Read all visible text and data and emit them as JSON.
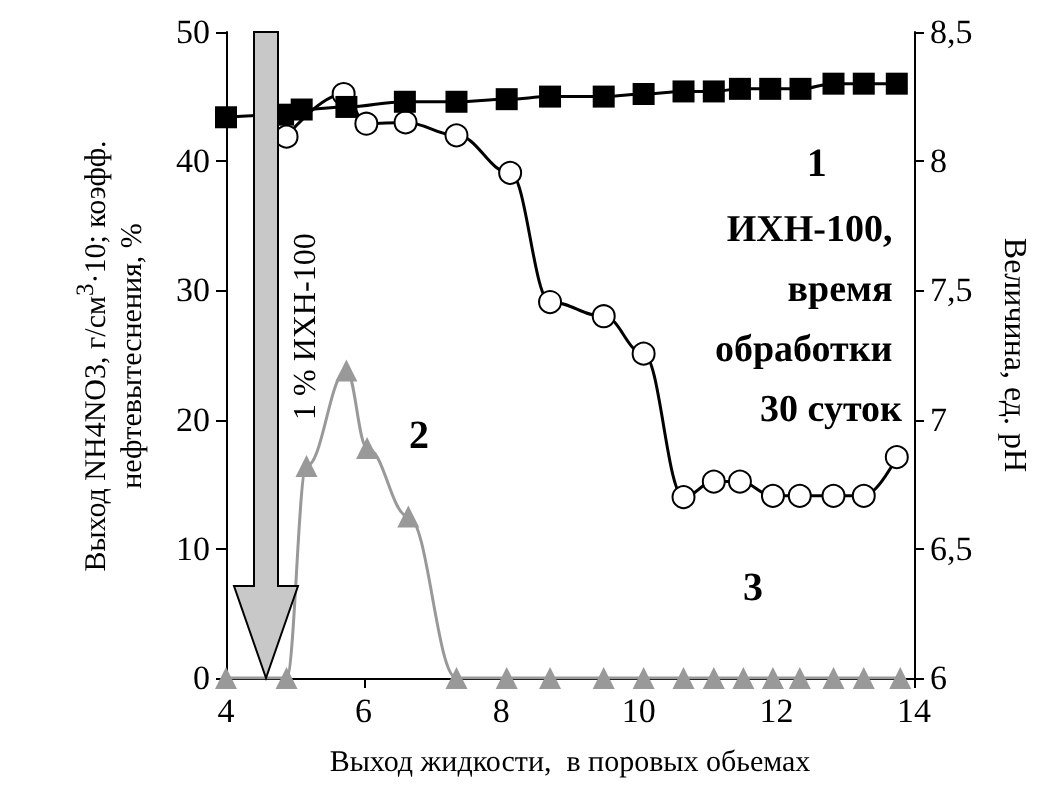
{
  "chart_data": {
    "type": "line",
    "xlabel": "Выход жидкости,  в поровых обьемах",
    "ylabel": "Выход NH4NO3, г/см$^{3}$·10; коэфф. нефтевытеснения, %",
    "y2label": "Величина, ед. pH",
    "xlim": [
      4,
      14
    ],
    "xticks": [
      4,
      6,
      8,
      10,
      12,
      14
    ],
    "ylim": [
      0,
      50
    ],
    "yticks": [
      0,
      10,
      20,
      30,
      40,
      50
    ],
    "y2lim": [
      6,
      8.5
    ],
    "y2ticks": [
      6,
      {
        "value": 6.5,
        "label": "6,5"
      },
      7,
      {
        "value": 7.5,
        "label": "7,5"
      },
      8,
      {
        "value": 8.5,
        "label": "8,5"
      }
    ],
    "grid": false,
    "legend": false,
    "annotations": [
      "ИХН-100, время обработки 30 суток",
      "1 % ИХН-100"
    ],
    "series": [
      {
        "name": "1",
        "color": "#000000",
        "marker": "square",
        "axis": "y2",
        "x": [
          4.0,
          4.83,
          5.1,
          5.75,
          6.6,
          7.35,
          8.08,
          8.71,
          9.49,
          10.07,
          10.65,
          11.09,
          11.47,
          11.91,
          12.35,
          12.83,
          13.27,
          13.75
        ],
        "values": [
          8.17,
          8.18,
          8.2,
          8.21,
          8.23,
          8.23,
          8.24,
          8.25,
          8.25,
          8.26,
          8.27,
          8.27,
          8.28,
          8.28,
          8.28,
          8.3,
          8.3,
          8.3
        ]
      },
      {
        "name": "2",
        "color": "#999999",
        "marker": "triangle",
        "x": [
          4.0,
          4.88,
          5.17,
          5.75,
          6.05,
          6.65,
          7.35,
          8.08,
          8.71,
          9.49,
          10.07,
          10.65,
          11.09,
          11.52,
          11.95,
          12.34,
          12.83,
          13.27,
          13.8
        ],
        "values": [
          0,
          0,
          16.4,
          23.8,
          17.8,
          12.5,
          0,
          0,
          0,
          0,
          0,
          0,
          0,
          0,
          0,
          0,
          0,
          0,
          0
        ]
      },
      {
        "name": "3",
        "color": "#000000",
        "marker": "circle",
        "x": [
          4.88,
          5.71,
          6.04,
          6.61,
          7.35,
          8.13,
          8.71,
          9.49,
          10.07,
          10.65,
          11.09,
          11.47,
          11.95,
          12.34,
          12.83,
          13.27,
          13.75
        ],
        "values": [
          41.9,
          45.2,
          42.9,
          43.0,
          42.0,
          39.1,
          29.1,
          28.0,
          25.1,
          14.0,
          15.2,
          15.2,
          14.1,
          14.1,
          14.1,
          14.1,
          17.1
        ]
      }
    ]
  }
}
